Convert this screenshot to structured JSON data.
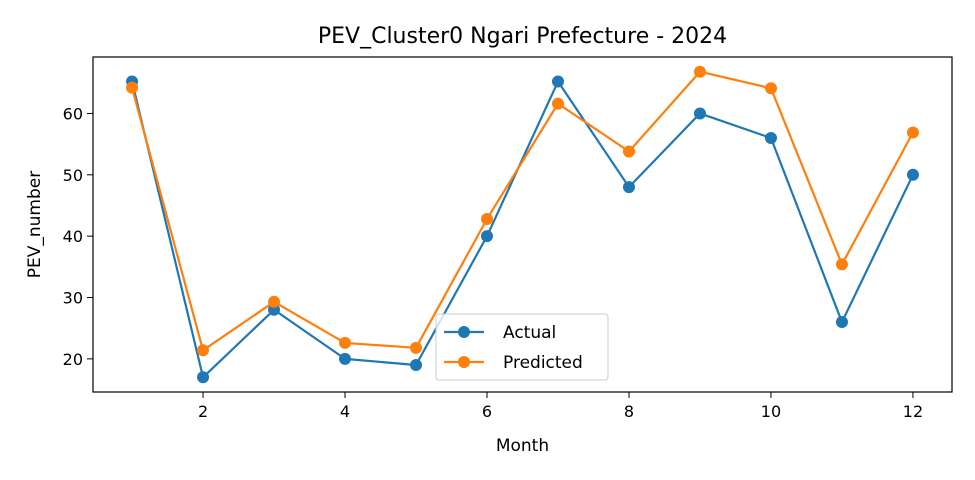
{
  "chart_data": {
    "type": "line",
    "title": "PEV_Cluster0 Ngari Prefecture - 2024",
    "xlabel": "Month",
    "ylabel": "PEV_number",
    "x": [
      1,
      2,
      3,
      4,
      5,
      6,
      7,
      8,
      9,
      10,
      11,
      12
    ],
    "xlim": [
      0.45,
      12.55
    ],
    "ylim": [
      14.6,
      69.2
    ],
    "xticks": [
      2,
      4,
      6,
      8,
      10,
      12
    ],
    "yticks": [
      20,
      30,
      40,
      50,
      60
    ],
    "grid": false,
    "legend_position": "lower center",
    "series": [
      {
        "name": "Actual",
        "color": "#1f77b4",
        "values": [
          65.2,
          17,
          28,
          20,
          19,
          40,
          65.2,
          48,
          60,
          56,
          26,
          50
        ]
      },
      {
        "name": "Predicted",
        "color": "#ff7f0e",
        "values": [
          64.2,
          21.4,
          29.3,
          22.6,
          21.8,
          42.8,
          61.6,
          53.8,
          66.8,
          64.1,
          35.4,
          56.9
        ]
      }
    ]
  }
}
